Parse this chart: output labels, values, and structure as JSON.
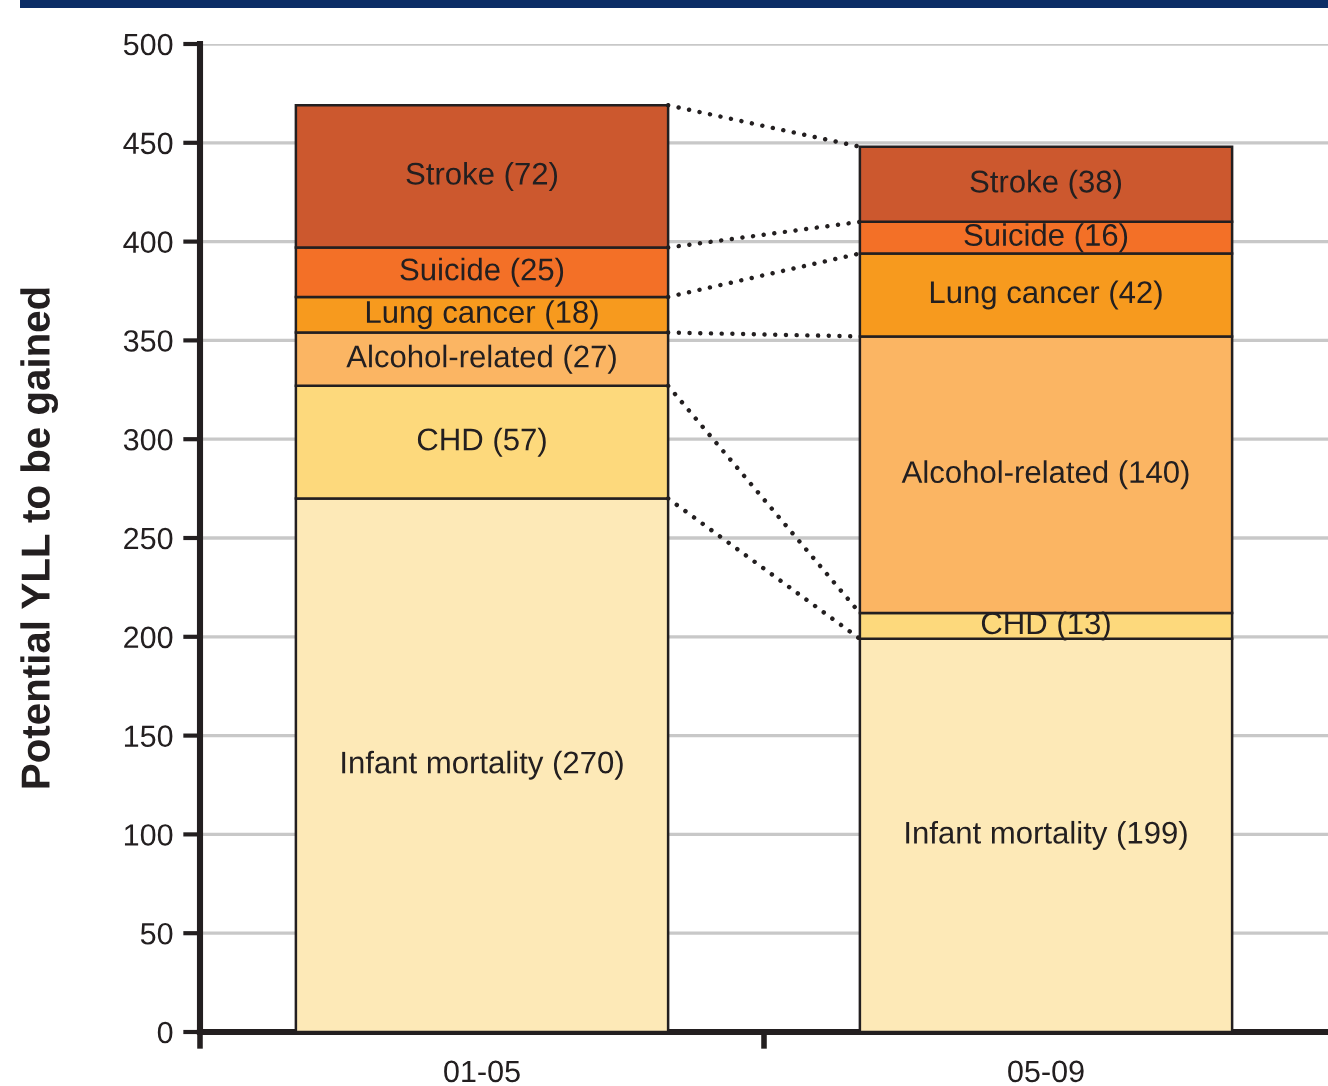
{
  "chart_data": {
    "type": "bar",
    "stacked": true,
    "ylabel": "Potential YLL to be gained",
    "categories": [
      "01-05",
      "05-09"
    ],
    "ylim": [
      0,
      500
    ],
    "yticks": [
      0,
      50,
      100,
      150,
      200,
      250,
      300,
      350,
      400,
      450,
      500
    ],
    "grid": "y",
    "line_style": "dotted",
    "series": [
      {
        "name": "Infant mortality",
        "color": "#fde9b7",
        "values": [
          270,
          199
        ],
        "value_labels": [
          "(270)",
          "(199)"
        ]
      },
      {
        "name": "CHD",
        "color": "#fdd97c",
        "values": [
          57,
          13
        ],
        "value_labels": [
          "(57)",
          "(13)"
        ]
      },
      {
        "name": "Alcohol-related",
        "color": "#fbb563",
        "values": [
          27,
          140
        ],
        "value_labels": [
          "(27)",
          "(140)"
        ]
      },
      {
        "name": "Lung cancer",
        "color": "#f79a1e",
        "values": [
          18,
          42
        ],
        "value_labels": [
          "(18)",
          "(42)"
        ]
      },
      {
        "name": "Suicide",
        "color": "#f37027",
        "values": [
          25,
          16
        ],
        "value_labels": [
          "(25)",
          "(16)"
        ]
      },
      {
        "name": "Stroke",
        "color": "#cc582e",
        "values": [
          72,
          38
        ],
        "value_labels": [
          "(72)",
          "(38)"
        ]
      }
    ]
  }
}
